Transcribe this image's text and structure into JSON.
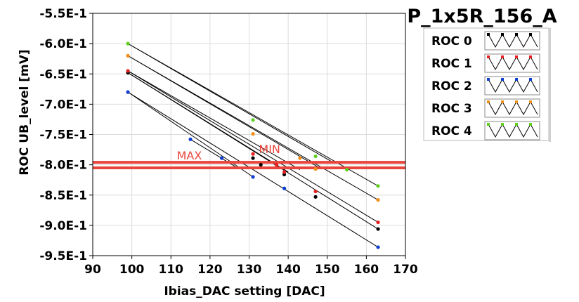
{
  "chart_data": {
    "type": "scatter",
    "title": "P_1x5R_156_A",
    "xlabel": "Ibias_DAC setting [DAC]",
    "ylabel": "ROC UB_level [mV]",
    "xlim": [
      90,
      170
    ],
    "ylim": [
      -0.95,
      -0.55
    ],
    "x_ticks": [
      "90",
      "100",
      "110",
      "120",
      "130",
      "140",
      "150",
      "160",
      "170"
    ],
    "y_ticks": [
      "-5.5E-1",
      "-6.0E-1",
      "-6.5E-1",
      "-7.0E-1",
      "-7.5E-1",
      "-8.0E-1",
      "-8.5E-1",
      "-9.0E-1",
      "-9.5E-1"
    ],
    "grid": true,
    "legend_position": "top-right",
    "limit_lines": [
      {
        "label": "MAX",
        "value": -0.796,
        "color": "#e8453c"
      },
      {
        "label": "MIN",
        "value": -0.805,
        "color": "#e8453c"
      }
    ],
    "series": [
      {
        "name": "ROC 0",
        "color": "#000000",
        "points": [
          [
            99,
            -0.648
          ],
          [
            131,
            -0.789
          ],
          [
            139,
            -0.816
          ],
          [
            147,
            -0.853
          ],
          [
            163,
            -0.906
          ],
          [
            133,
            -0.8
          ]
        ]
      },
      {
        "name": "ROC 1",
        "color": "#e82020",
        "points": [
          [
            99,
            -0.645
          ],
          [
            131,
            -0.782
          ],
          [
            139,
            -0.812
          ],
          [
            147,
            -0.844
          ],
          [
            163,
            -0.895
          ],
          [
            137,
            -0.8
          ]
        ]
      },
      {
        "name": "ROC 2",
        "color": "#1040d0",
        "points": [
          [
            99,
            -0.68
          ],
          [
            115,
            -0.758
          ],
          [
            123,
            -0.789
          ],
          [
            131,
            -0.82
          ],
          [
            139,
            -0.839
          ],
          [
            163,
            -0.936
          ]
        ]
      },
      {
        "name": "ROC 3",
        "color": "#f0901a",
        "points": [
          [
            99,
            -0.62
          ],
          [
            131,
            -0.749
          ],
          [
            143,
            -0.789
          ],
          [
            147,
            -0.807
          ],
          [
            163,
            -0.858
          ]
        ]
      },
      {
        "name": "ROC 4",
        "color": "#60d020",
        "points": [
          [
            99,
            -0.6
          ],
          [
            131,
            -0.726
          ],
          [
            147,
            -0.786
          ],
          [
            155,
            -0.808
          ],
          [
            163,
            -0.835
          ]
        ]
      }
    ],
    "fit_lines": [
      [
        [
          99,
          -0.6
        ],
        [
          163,
          -0.835
        ]
      ],
      [
        [
          99,
          -0.62
        ],
        [
          163,
          -0.858
        ]
      ],
      [
        [
          99,
          -0.645
        ],
        [
          163,
          -0.895
        ]
      ],
      [
        [
          99,
          -0.648
        ],
        [
          163,
          -0.906
        ]
      ],
      [
        [
          99,
          -0.68
        ],
        [
          163,
          -0.936
        ]
      ],
      [
        [
          99,
          -0.6
        ],
        [
          152,
          -0.798
        ]
      ],
      [
        [
          99,
          -0.62
        ],
        [
          148,
          -0.805
        ]
      ],
      [
        [
          99,
          -0.645
        ],
        [
          143,
          -0.808
        ]
      ],
      [
        [
          99,
          -0.648
        ],
        [
          140,
          -0.812
        ]
      ],
      [
        [
          99,
          -0.68
        ],
        [
          131,
          -0.82
        ]
      ],
      [
        [
          115,
          -0.758
        ],
        [
          127,
          -0.805
        ]
      ]
    ]
  }
}
